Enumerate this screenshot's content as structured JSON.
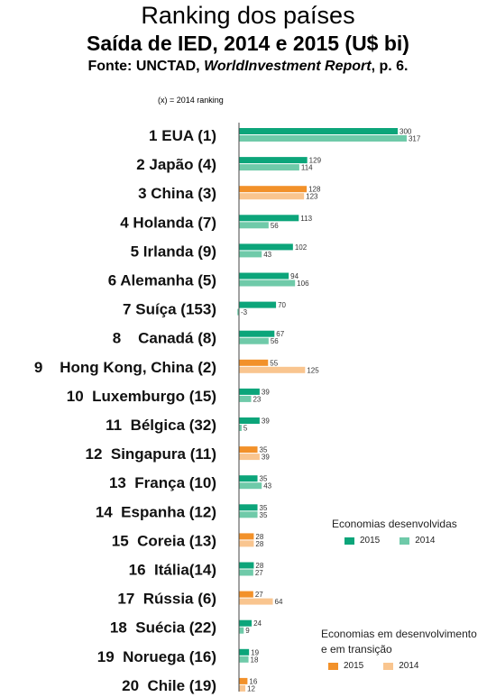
{
  "header": {
    "title": "Ranking dos países",
    "subtitle": "Saída de IED, 2014 e 2015 (U$ bi)",
    "source_prefix": "Fonte: UNCTAD, ",
    "source_italic": "WorldInvestment Report",
    "source_suffix": ", p. 6.",
    "note": "(x) = 2014 ranking"
  },
  "colors": {
    "developed_2015": "#0ca57a",
    "developed_2014": "#6fcaa9",
    "developing_2015": "#f2912a",
    "developing_2014": "#f9c58f",
    "axis": "#444444"
  },
  "legend": {
    "developed": {
      "title": "Economias desenvolvidas",
      "y2015": "2015",
      "y2014": "2014"
    },
    "developing": {
      "title_line1": "Economias em desenvolvimento",
      "title_line2": "e em transição",
      "y2015": "2015",
      "y2014": "2014"
    }
  },
  "chart_data": {
    "type": "bar",
    "orientation": "horizontal",
    "categories": [
      "1 EUA (1)",
      "2 Japão (4)",
      "3 China (3)",
      "4 Holanda (7)",
      "5 Irlanda (9)",
      "6 Alemanha (5)",
      "7 Suíça (153)",
      "8    Canadá (8)",
      "9    Hong Kong, China (2)",
      "10  Luxemburgo (15)",
      "11  Bélgica (32)",
      "12  Singapura (11)",
      "13  França (10)",
      "14  Espanha (12)",
      "15  Coreia (13)",
      "16  Itália(14)",
      "17  Rússia (6)",
      "18  Suécia (22)",
      "19  Noruega (16)",
      "20  Chile (19)"
    ],
    "group": [
      "developed",
      "developed",
      "developing",
      "developed",
      "developed",
      "developed",
      "developed",
      "developed",
      "developing",
      "developed",
      "developed",
      "developing",
      "developed",
      "developed",
      "developing",
      "developed",
      "developing",
      "developed",
      "developed",
      "developing"
    ],
    "series": [
      {
        "name": "2015",
        "values": [
          300,
          129,
          128,
          113,
          102,
          94,
          70,
          67,
          55,
          39,
          39,
          35,
          35,
          35,
          28,
          28,
          27,
          24,
          19,
          16
        ]
      },
      {
        "name": "2014",
        "values": [
          317,
          114,
          123,
          56,
          43,
          106,
          -3,
          56,
          125,
          23,
          5,
          39,
          43,
          35,
          28,
          27,
          64,
          9,
          18,
          12
        ]
      }
    ]
  }
}
